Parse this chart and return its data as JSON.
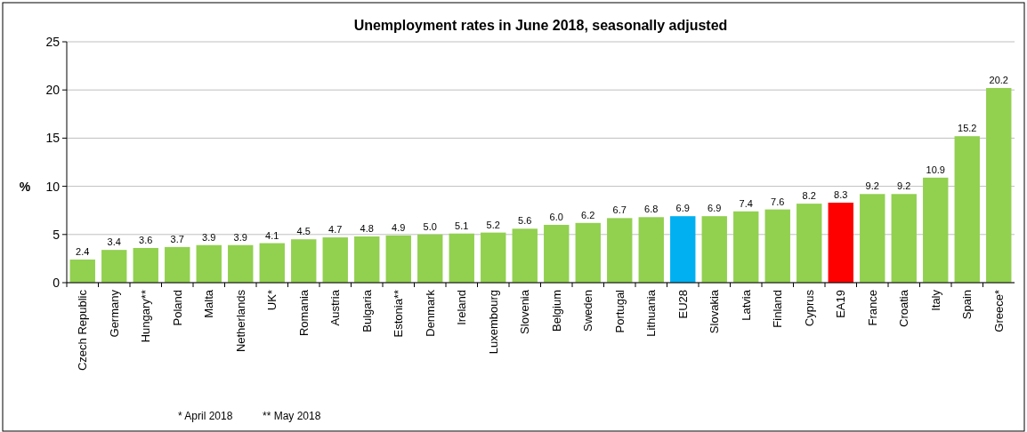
{
  "chart_data": {
    "type": "bar",
    "title": "Unemployment rates in June 2018, seasonally adjusted",
    "ylabel": "%",
    "categories": [
      "Czech Republic",
      "Germany",
      "Hungary**",
      "Poland",
      "Malta",
      "Netherlands",
      "UK*",
      "Romania",
      "Austria",
      "Bulgaria",
      "Estonia**",
      "Denmark",
      "Ireland",
      "Luxembourg",
      "Slovenia",
      "Belgium",
      "Sweden",
      "Portugal",
      "Lithuania",
      "EU28",
      "Slovakia",
      "Latvia",
      "Finland",
      "Cyprus",
      "EA19",
      "France",
      "Croatia",
      "Italy",
      "Spain",
      "Greece*"
    ],
    "values": [
      2.4,
      3.4,
      3.6,
      3.7,
      3.9,
      3.9,
      4.1,
      4.5,
      4.7,
      4.8,
      4.9,
      5.0,
      5.1,
      5.2,
      5.6,
      6.0,
      6.2,
      6.7,
      6.8,
      6.9,
      6.9,
      7.4,
      7.6,
      8.2,
      8.3,
      9.2,
      9.2,
      10.9,
      15.2,
      20.2
    ],
    "value_labels": [
      "2.4",
      "3.4",
      "3.6",
      "3.7",
      "3.9",
      "3.9",
      "4.1",
      "4.5",
      "4.7",
      "4.8",
      "4.9",
      "5.0",
      "5.1",
      "5.2",
      "5.6",
      "6.0",
      "6.2",
      "6.7",
      "6.8",
      "6.9",
      "6.9",
      "7.4",
      "7.6",
      "8.2",
      "8.3",
      "9.2",
      "9.2",
      "10.9",
      "15.2",
      "20.2"
    ],
    "colors": [
      "#92d050",
      "#92d050",
      "#92d050",
      "#92d050",
      "#92d050",
      "#92d050",
      "#92d050",
      "#92d050",
      "#92d050",
      "#92d050",
      "#92d050",
      "#92d050",
      "#92d050",
      "#92d050",
      "#92d050",
      "#92d050",
      "#92d050",
      "#92d050",
      "#92d050",
      "#00b0f0",
      "#92d050",
      "#92d050",
      "#92d050",
      "#92d050",
      "#ff0000",
      "#92d050",
      "#92d050",
      "#92d050",
      "#92d050",
      "#92d050"
    ],
    "ylim": [
      0,
      25
    ],
    "yticks": [
      0,
      5,
      10,
      15,
      20,
      25
    ],
    "grid": "y",
    "annotations": [
      "* April 2018",
      "** May 2018"
    ]
  }
}
